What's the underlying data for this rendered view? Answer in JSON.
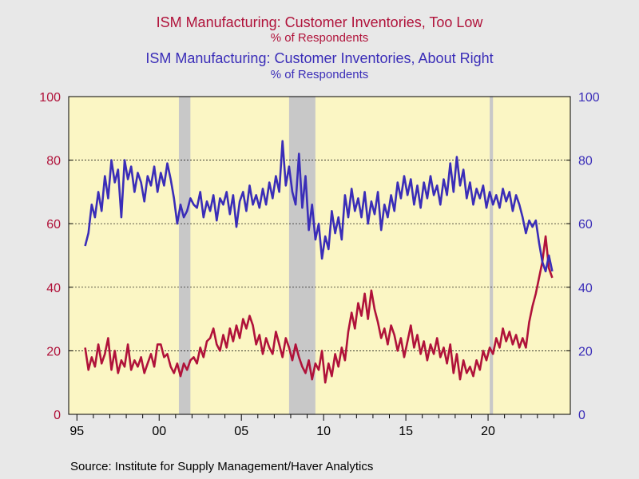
{
  "titles": {
    "red_main": "ISM Manufacturing: Customer Inventories, Too Low",
    "red_sub": "% of Respondents",
    "blue_main": "ISM Manufacturing: Customer Inventories, About Right",
    "blue_sub": "% of Respondents"
  },
  "source": "Source:  Institute for Supply Management/Haver Analytics",
  "colors": {
    "red": "#b0123a",
    "blue": "#3a2db8",
    "plot_bg": "#fbf6c4",
    "recession": "#c8c8c8"
  },
  "chart_data": {
    "type": "line",
    "x_tick_labels": [
      "95",
      "00",
      "05",
      "10",
      "15",
      "20"
    ],
    "x_tick_years": [
      1995,
      2000,
      2005,
      2010,
      2015,
      2020
    ],
    "xlim": [
      1994.5,
      2025.0
    ],
    "ylim_left": [
      0,
      100
    ],
    "ylim_right": [
      0,
      100
    ],
    "y_ticks": [
      0,
      20,
      40,
      60,
      80,
      100
    ],
    "grid": "horizontal dashed",
    "recessions": [
      [
        2001.2,
        2001.9
      ],
      [
        2007.9,
        2009.5
      ],
      [
        2020.1,
        2020.3
      ]
    ],
    "series": [
      {
        "name": "ISM Manufacturing: Customer Inventories, Too Low",
        "axis": "left",
        "points": [
          [
            1995.5,
            21
          ],
          [
            1995.7,
            14
          ],
          [
            1995.9,
            18
          ],
          [
            1996.1,
            15
          ],
          [
            1996.3,
            22
          ],
          [
            1996.5,
            16
          ],
          [
            1996.7,
            19
          ],
          [
            1996.9,
            24
          ],
          [
            1997.1,
            14
          ],
          [
            1997.3,
            20
          ],
          [
            1997.5,
            13
          ],
          [
            1997.7,
            17
          ],
          [
            1997.9,
            15
          ],
          [
            1998.1,
            22
          ],
          [
            1998.3,
            14
          ],
          [
            1998.5,
            17
          ],
          [
            1998.7,
            15
          ],
          [
            1998.9,
            18
          ],
          [
            1999.1,
            13
          ],
          [
            1999.3,
            16
          ],
          [
            1999.5,
            19
          ],
          [
            1999.7,
            15
          ],
          [
            1999.9,
            22
          ],
          [
            2000.1,
            22
          ],
          [
            2000.3,
            18
          ],
          [
            2000.5,
            19
          ],
          [
            2000.7,
            15
          ],
          [
            2000.9,
            13
          ],
          [
            2001.1,
            16
          ],
          [
            2001.3,
            12
          ],
          [
            2001.5,
            16
          ],
          [
            2001.7,
            14
          ],
          [
            2001.9,
            17
          ],
          [
            2002.1,
            18
          ],
          [
            2002.3,
            16
          ],
          [
            2002.5,
            21
          ],
          [
            2002.7,
            18
          ],
          [
            2002.9,
            23
          ],
          [
            2003.1,
            24
          ],
          [
            2003.3,
            27
          ],
          [
            2003.5,
            22
          ],
          [
            2003.7,
            20
          ],
          [
            2003.9,
            25
          ],
          [
            2004.1,
            21
          ],
          [
            2004.3,
            27
          ],
          [
            2004.5,
            23
          ],
          [
            2004.7,
            28
          ],
          [
            2004.9,
            24
          ],
          [
            2005.1,
            30
          ],
          [
            2005.3,
            27
          ],
          [
            2005.5,
            31
          ],
          [
            2005.7,
            28
          ],
          [
            2005.9,
            22
          ],
          [
            2006.1,
            25
          ],
          [
            2006.3,
            19
          ],
          [
            2006.5,
            24
          ],
          [
            2006.7,
            21
          ],
          [
            2006.9,
            19
          ],
          [
            2007.1,
            26
          ],
          [
            2007.3,
            22
          ],
          [
            2007.5,
            18
          ],
          [
            2007.7,
            24
          ],
          [
            2007.9,
            21
          ],
          [
            2008.1,
            17
          ],
          [
            2008.3,
            22
          ],
          [
            2008.5,
            18
          ],
          [
            2008.7,
            15
          ],
          [
            2008.9,
            13
          ],
          [
            2009.1,
            17
          ],
          [
            2009.3,
            11
          ],
          [
            2009.5,
            16
          ],
          [
            2009.7,
            14
          ],
          [
            2009.9,
            20
          ],
          [
            2010.1,
            10
          ],
          [
            2010.3,
            16
          ],
          [
            2010.5,
            12
          ],
          [
            2010.7,
            19
          ],
          [
            2010.9,
            15
          ],
          [
            2011.1,
            21
          ],
          [
            2011.3,
            17
          ],
          [
            2011.5,
            26
          ],
          [
            2011.7,
            32
          ],
          [
            2011.9,
            27
          ],
          [
            2012.1,
            35
          ],
          [
            2012.3,
            31
          ],
          [
            2012.5,
            38
          ],
          [
            2012.7,
            30
          ],
          [
            2012.9,
            39
          ],
          [
            2013.1,
            33
          ],
          [
            2013.3,
            29
          ],
          [
            2013.5,
            24
          ],
          [
            2013.7,
            27
          ],
          [
            2013.9,
            22
          ],
          [
            2014.1,
            28
          ],
          [
            2014.3,
            25
          ],
          [
            2014.5,
            20
          ],
          [
            2014.7,
            24
          ],
          [
            2014.9,
            18
          ],
          [
            2015.1,
            23
          ],
          [
            2015.3,
            28
          ],
          [
            2015.5,
            21
          ],
          [
            2015.7,
            25
          ],
          [
            2015.9,
            19
          ],
          [
            2016.1,
            23
          ],
          [
            2016.3,
            17
          ],
          [
            2016.5,
            22
          ],
          [
            2016.7,
            19
          ],
          [
            2016.9,
            24
          ],
          [
            2017.1,
            18
          ],
          [
            2017.3,
            21
          ],
          [
            2017.5,
            16
          ],
          [
            2017.7,
            22
          ],
          [
            2017.9,
            13
          ],
          [
            2018.1,
            19
          ],
          [
            2018.3,
            11
          ],
          [
            2018.5,
            17
          ],
          [
            2018.7,
            13
          ],
          [
            2018.9,
            15
          ],
          [
            2019.1,
            12
          ],
          [
            2019.3,
            17
          ],
          [
            2019.5,
            14
          ],
          [
            2019.7,
            20
          ],
          [
            2019.9,
            17
          ],
          [
            2020.1,
            21
          ],
          [
            2020.3,
            19
          ],
          [
            2020.5,
            24
          ],
          [
            2020.7,
            21
          ],
          [
            2020.9,
            27
          ],
          [
            2021.1,
            23
          ],
          [
            2021.3,
            26
          ],
          [
            2021.5,
            22
          ],
          [
            2021.7,
            25
          ],
          [
            2021.9,
            21
          ],
          [
            2022.1,
            24
          ],
          [
            2022.3,
            21
          ],
          [
            2022.5,
            29
          ],
          [
            2022.7,
            34
          ],
          [
            2022.9,
            38
          ],
          [
            2023.1,
            43
          ],
          [
            2023.3,
            48
          ],
          [
            2023.5,
            56
          ],
          [
            2023.7,
            46
          ],
          [
            2023.9,
            43
          ]
        ]
      },
      {
        "name": "ISM Manufacturing: Customer Inventories, About Right",
        "axis": "right",
        "points": [
          [
            1995.5,
            53
          ],
          [
            1995.7,
            57
          ],
          [
            1995.9,
            66
          ],
          [
            1996.1,
            62
          ],
          [
            1996.3,
            70
          ],
          [
            1996.5,
            64
          ],
          [
            1996.7,
            75
          ],
          [
            1996.9,
            68
          ],
          [
            1997.1,
            80
          ],
          [
            1997.3,
            73
          ],
          [
            1997.5,
            77
          ],
          [
            1997.7,
            62
          ],
          [
            1997.9,
            80
          ],
          [
            1998.1,
            74
          ],
          [
            1998.3,
            78
          ],
          [
            1998.5,
            70
          ],
          [
            1998.7,
            76
          ],
          [
            1998.9,
            73
          ],
          [
            1999.1,
            67
          ],
          [
            1999.3,
            75
          ],
          [
            1999.5,
            72
          ],
          [
            1999.7,
            78
          ],
          [
            1999.9,
            70
          ],
          [
            2000.1,
            76
          ],
          [
            2000.3,
            72
          ],
          [
            2000.5,
            79
          ],
          [
            2000.7,
            74
          ],
          [
            2000.9,
            68
          ],
          [
            2001.1,
            60
          ],
          [
            2001.3,
            66
          ],
          [
            2001.5,
            62
          ],
          [
            2001.7,
            64
          ],
          [
            2001.9,
            68
          ],
          [
            2002.1,
            66
          ],
          [
            2002.3,
            65
          ],
          [
            2002.5,
            70
          ],
          [
            2002.7,
            62
          ],
          [
            2002.9,
            67
          ],
          [
            2003.1,
            64
          ],
          [
            2003.3,
            69
          ],
          [
            2003.5,
            61
          ],
          [
            2003.7,
            68
          ],
          [
            2003.9,
            66
          ],
          [
            2004.1,
            70
          ],
          [
            2004.3,
            63
          ],
          [
            2004.5,
            69
          ],
          [
            2004.7,
            59
          ],
          [
            2004.9,
            67
          ],
          [
            2005.1,
            70
          ],
          [
            2005.3,
            64
          ],
          [
            2005.5,
            72
          ],
          [
            2005.7,
            66
          ],
          [
            2005.9,
            69
          ],
          [
            2006.1,
            65
          ],
          [
            2006.3,
            71
          ],
          [
            2006.5,
            66
          ],
          [
            2006.7,
            73
          ],
          [
            2006.9,
            68
          ],
          [
            2007.1,
            75
          ],
          [
            2007.3,
            70
          ],
          [
            2007.5,
            86
          ],
          [
            2007.7,
            72
          ],
          [
            2007.9,
            78
          ],
          [
            2008.1,
            70
          ],
          [
            2008.3,
            66
          ],
          [
            2008.5,
            82
          ],
          [
            2008.7,
            65
          ],
          [
            2008.9,
            75
          ],
          [
            2009.1,
            58
          ],
          [
            2009.3,
            66
          ],
          [
            2009.5,
            55
          ],
          [
            2009.7,
            60
          ],
          [
            2009.9,
            49
          ],
          [
            2010.1,
            56
          ],
          [
            2010.3,
            52
          ],
          [
            2010.5,
            64
          ],
          [
            2010.7,
            57
          ],
          [
            2010.9,
            62
          ],
          [
            2011.1,
            55
          ],
          [
            2011.3,
            69
          ],
          [
            2011.5,
            62
          ],
          [
            2011.7,
            71
          ],
          [
            2011.9,
            64
          ],
          [
            2012.1,
            68
          ],
          [
            2012.3,
            62
          ],
          [
            2012.5,
            70
          ],
          [
            2012.7,
            60
          ],
          [
            2012.9,
            67
          ],
          [
            2013.1,
            63
          ],
          [
            2013.3,
            70
          ],
          [
            2013.5,
            58
          ],
          [
            2013.7,
            66
          ],
          [
            2013.9,
            62
          ],
          [
            2014.1,
            69
          ],
          [
            2014.3,
            64
          ],
          [
            2014.5,
            73
          ],
          [
            2014.7,
            68
          ],
          [
            2014.9,
            75
          ],
          [
            2015.1,
            69
          ],
          [
            2015.3,
            74
          ],
          [
            2015.5,
            66
          ],
          [
            2015.7,
            72
          ],
          [
            2015.9,
            65
          ],
          [
            2016.1,
            73
          ],
          [
            2016.3,
            68
          ],
          [
            2016.5,
            75
          ],
          [
            2016.7,
            69
          ],
          [
            2016.9,
            72
          ],
          [
            2017.1,
            66
          ],
          [
            2017.3,
            74
          ],
          [
            2017.5,
            69
          ],
          [
            2017.7,
            79
          ],
          [
            2017.9,
            70
          ],
          [
            2018.1,
            81
          ],
          [
            2018.3,
            72
          ],
          [
            2018.5,
            77
          ],
          [
            2018.7,
            68
          ],
          [
            2018.9,
            73
          ],
          [
            2019.1,
            66
          ],
          [
            2019.3,
            71
          ],
          [
            2019.5,
            68
          ],
          [
            2019.7,
            72
          ],
          [
            2019.9,
            65
          ],
          [
            2020.1,
            70
          ],
          [
            2020.3,
            66
          ],
          [
            2020.5,
            69
          ],
          [
            2020.7,
            65
          ],
          [
            2020.9,
            71
          ],
          [
            2021.1,
            67
          ],
          [
            2021.3,
            70
          ],
          [
            2021.5,
            64
          ],
          [
            2021.7,
            69
          ],
          [
            2021.9,
            66
          ],
          [
            2022.1,
            62
          ],
          [
            2022.3,
            57
          ],
          [
            2022.5,
            61
          ],
          [
            2022.7,
            59
          ],
          [
            2022.9,
            61
          ],
          [
            2023.1,
            54
          ],
          [
            2023.3,
            48
          ],
          [
            2023.5,
            45
          ],
          [
            2023.7,
            50
          ],
          [
            2023.9,
            45
          ]
        ]
      }
    ]
  }
}
